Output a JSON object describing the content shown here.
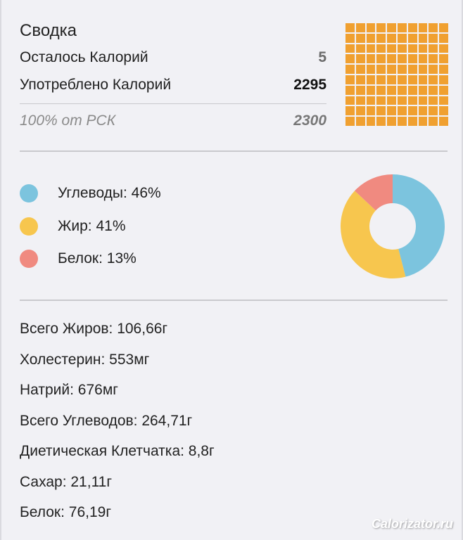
{
  "summary": {
    "title": "Сводка",
    "remaining_label": "Осталось Калорий",
    "remaining_value": "5",
    "consumed_label": "Употреблено Калорий",
    "consumed_value": "2295",
    "rsk_label": "100% от РСК",
    "rsk_value": "2300"
  },
  "macros": [
    {
      "label": "Углеводы: 46%",
      "percent": 46,
      "color": "#7cc4de"
    },
    {
      "label": "Жир: 41%",
      "percent": 41,
      "color": "#f7c64e"
    },
    {
      "label": "Белок: 13%",
      "percent": 13,
      "color": "#f08a80"
    }
  ],
  "nutrients": [
    "Всего Жиров: 106,66г",
    "Холестерин: 553мг",
    "Натрий: 676мг",
    "Всего Углеводов: 264,71г",
    "Диетическая Клетчатка: 8,8г",
    "Сахар: 21,11г",
    "Белок: 76,19г"
  ],
  "icons": {
    "calorie_grid": "grid-icon",
    "grid_color": "#f0a030"
  },
  "watermark": "Calorizator.ru",
  "chart_data": {
    "type": "pie",
    "categories": [
      "Углеводы",
      "Жир",
      "Белок"
    ],
    "values": [
      46,
      41,
      13
    ],
    "colors": [
      "#7cc4de",
      "#f7c64e",
      "#f08a80"
    ]
  }
}
